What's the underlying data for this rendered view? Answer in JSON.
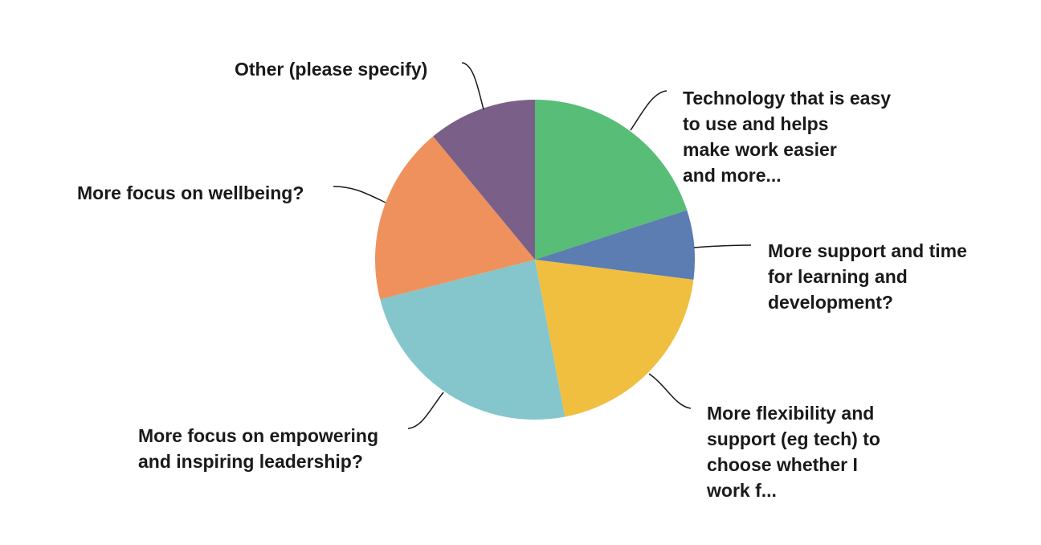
{
  "chart_data": {
    "type": "pie",
    "categories": [
      "Technology that is easy\nto use and helps\nmake work easier\nand more...",
      "More support and time\nfor learning and\ndevelopment?",
      "More flexibility and\nsupport (eg tech) to\nchoose whether I\nwork f...",
      "More focus on empowering\nand inspiring leadership?",
      "More focus on wellbeing?",
      "Other (please specify)"
    ],
    "values": [
      20,
      7,
      20,
      24,
      18,
      11
    ],
    "colors": [
      "#57bd77",
      "#5b7db1",
      "#f0bf40",
      "#84c6cb",
      "#ef915c",
      "#7a6089"
    ]
  }
}
